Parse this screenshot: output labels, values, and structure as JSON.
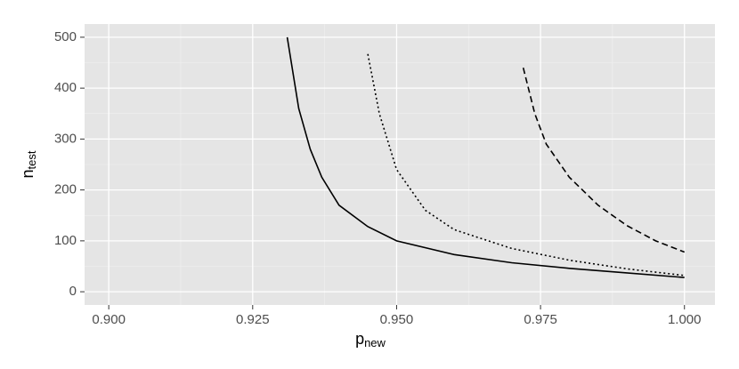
{
  "chart_data": {
    "type": "line",
    "x_label": "p",
    "x_label_sub": "new",
    "y_label": "n",
    "y_label_sub": "test",
    "xlim": [
      0.8958,
      1.0053
    ],
    "xticks": [
      {
        "value": 0.9,
        "label": "0.900"
      },
      {
        "value": 0.925,
        "label": "0.925"
      },
      {
        "value": 0.95,
        "label": "0.950"
      },
      {
        "value": 0.975,
        "label": "0.975"
      },
      {
        "value": 1.0,
        "label": "1.000"
      }
    ],
    "ylim": [
      -26,
      526
    ],
    "yticks": [
      0,
      100,
      200,
      300,
      400,
      500
    ],
    "grid": true,
    "series": [
      {
        "color": "#000000",
        "linestyle": "solid",
        "x": [
          0.931,
          0.933,
          0.935,
          0.937,
          0.94,
          0.945,
          0.95,
          0.96,
          0.97,
          0.98,
          0.99,
          1.0
        ],
        "values": [
          500,
          360,
          280,
          225,
          170,
          128,
          100,
          73,
          57,
          46,
          37,
          28
        ]
      },
      {
        "color": "#000000",
        "linestyle": "dotted",
        "x": [
          0.945,
          0.947,
          0.95,
          0.955,
          0.96,
          0.97,
          0.98,
          0.99,
          1.0
        ],
        "values": [
          467,
          350,
          240,
          160,
          122,
          85,
          62,
          45,
          32
        ]
      },
      {
        "color": "#000000",
        "linestyle": "dashed",
        "x": [
          0.972,
          0.974,
          0.976,
          0.98,
          0.985,
          0.99,
          0.995,
          1.0
        ],
        "values": [
          440,
          350,
          290,
          225,
          170,
          130,
          100,
          78
        ]
      }
    ]
  }
}
